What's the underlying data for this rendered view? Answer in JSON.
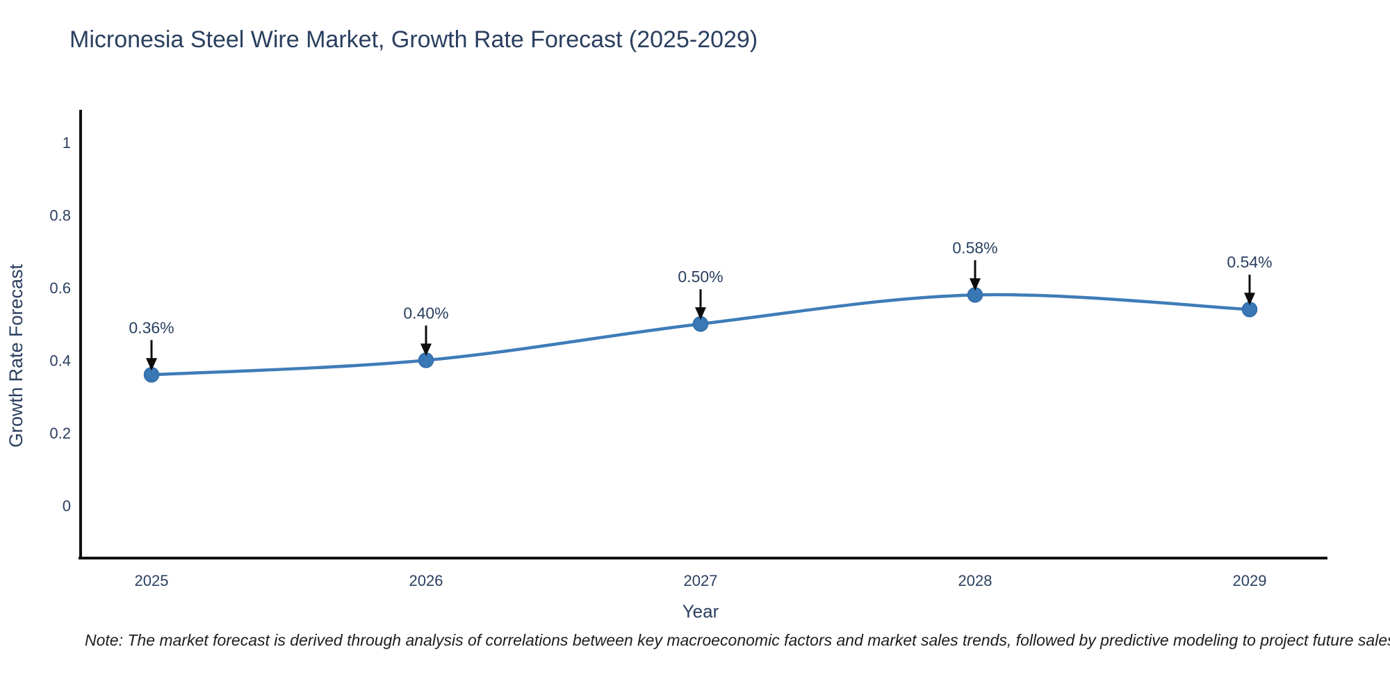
{
  "title": "Micronesia Steel Wire Market, Growth Rate Forecast (2025-2029)",
  "note": "Note: The market forecast is derived through analysis of correlations between key macroeconomic factors and market sales trends, followed by predictive modeling to project future sales",
  "chart_data": {
    "type": "line",
    "title": "Micronesia Steel Wire Market, Growth Rate Forecast (2025-2029)",
    "categories": [
      "2025",
      "2026",
      "2027",
      "2028",
      "2029"
    ],
    "values": [
      0.36,
      0.4,
      0.5,
      0.58,
      0.54
    ],
    "point_labels": [
      "0.36%",
      "0.40%",
      "0.50%",
      "0.58%",
      "0.54%"
    ],
    "xlabel": "Year",
    "ylabel": "Growth Rate Forecast",
    "ytick_values": [
      0,
      0.2,
      0.4,
      0.6,
      0.8,
      1
    ],
    "ytick_labels": [
      "0",
      "0.2",
      "0.4",
      "0.6",
      "0.8",
      "1"
    ],
    "ylim": [
      -0.145,
      1.09
    ],
    "line_shape": "spline",
    "grid": false,
    "legend_position": "none",
    "colors": {
      "line": "#3f7cb8",
      "marker": "#3a77b5",
      "marker_edge": "#2f6ba8",
      "axis": "#101010",
      "tick_text": "#2a3f5f",
      "annotation_text": "#2a3f5f",
      "annotation_arrow": "#0d0d0d"
    }
  }
}
